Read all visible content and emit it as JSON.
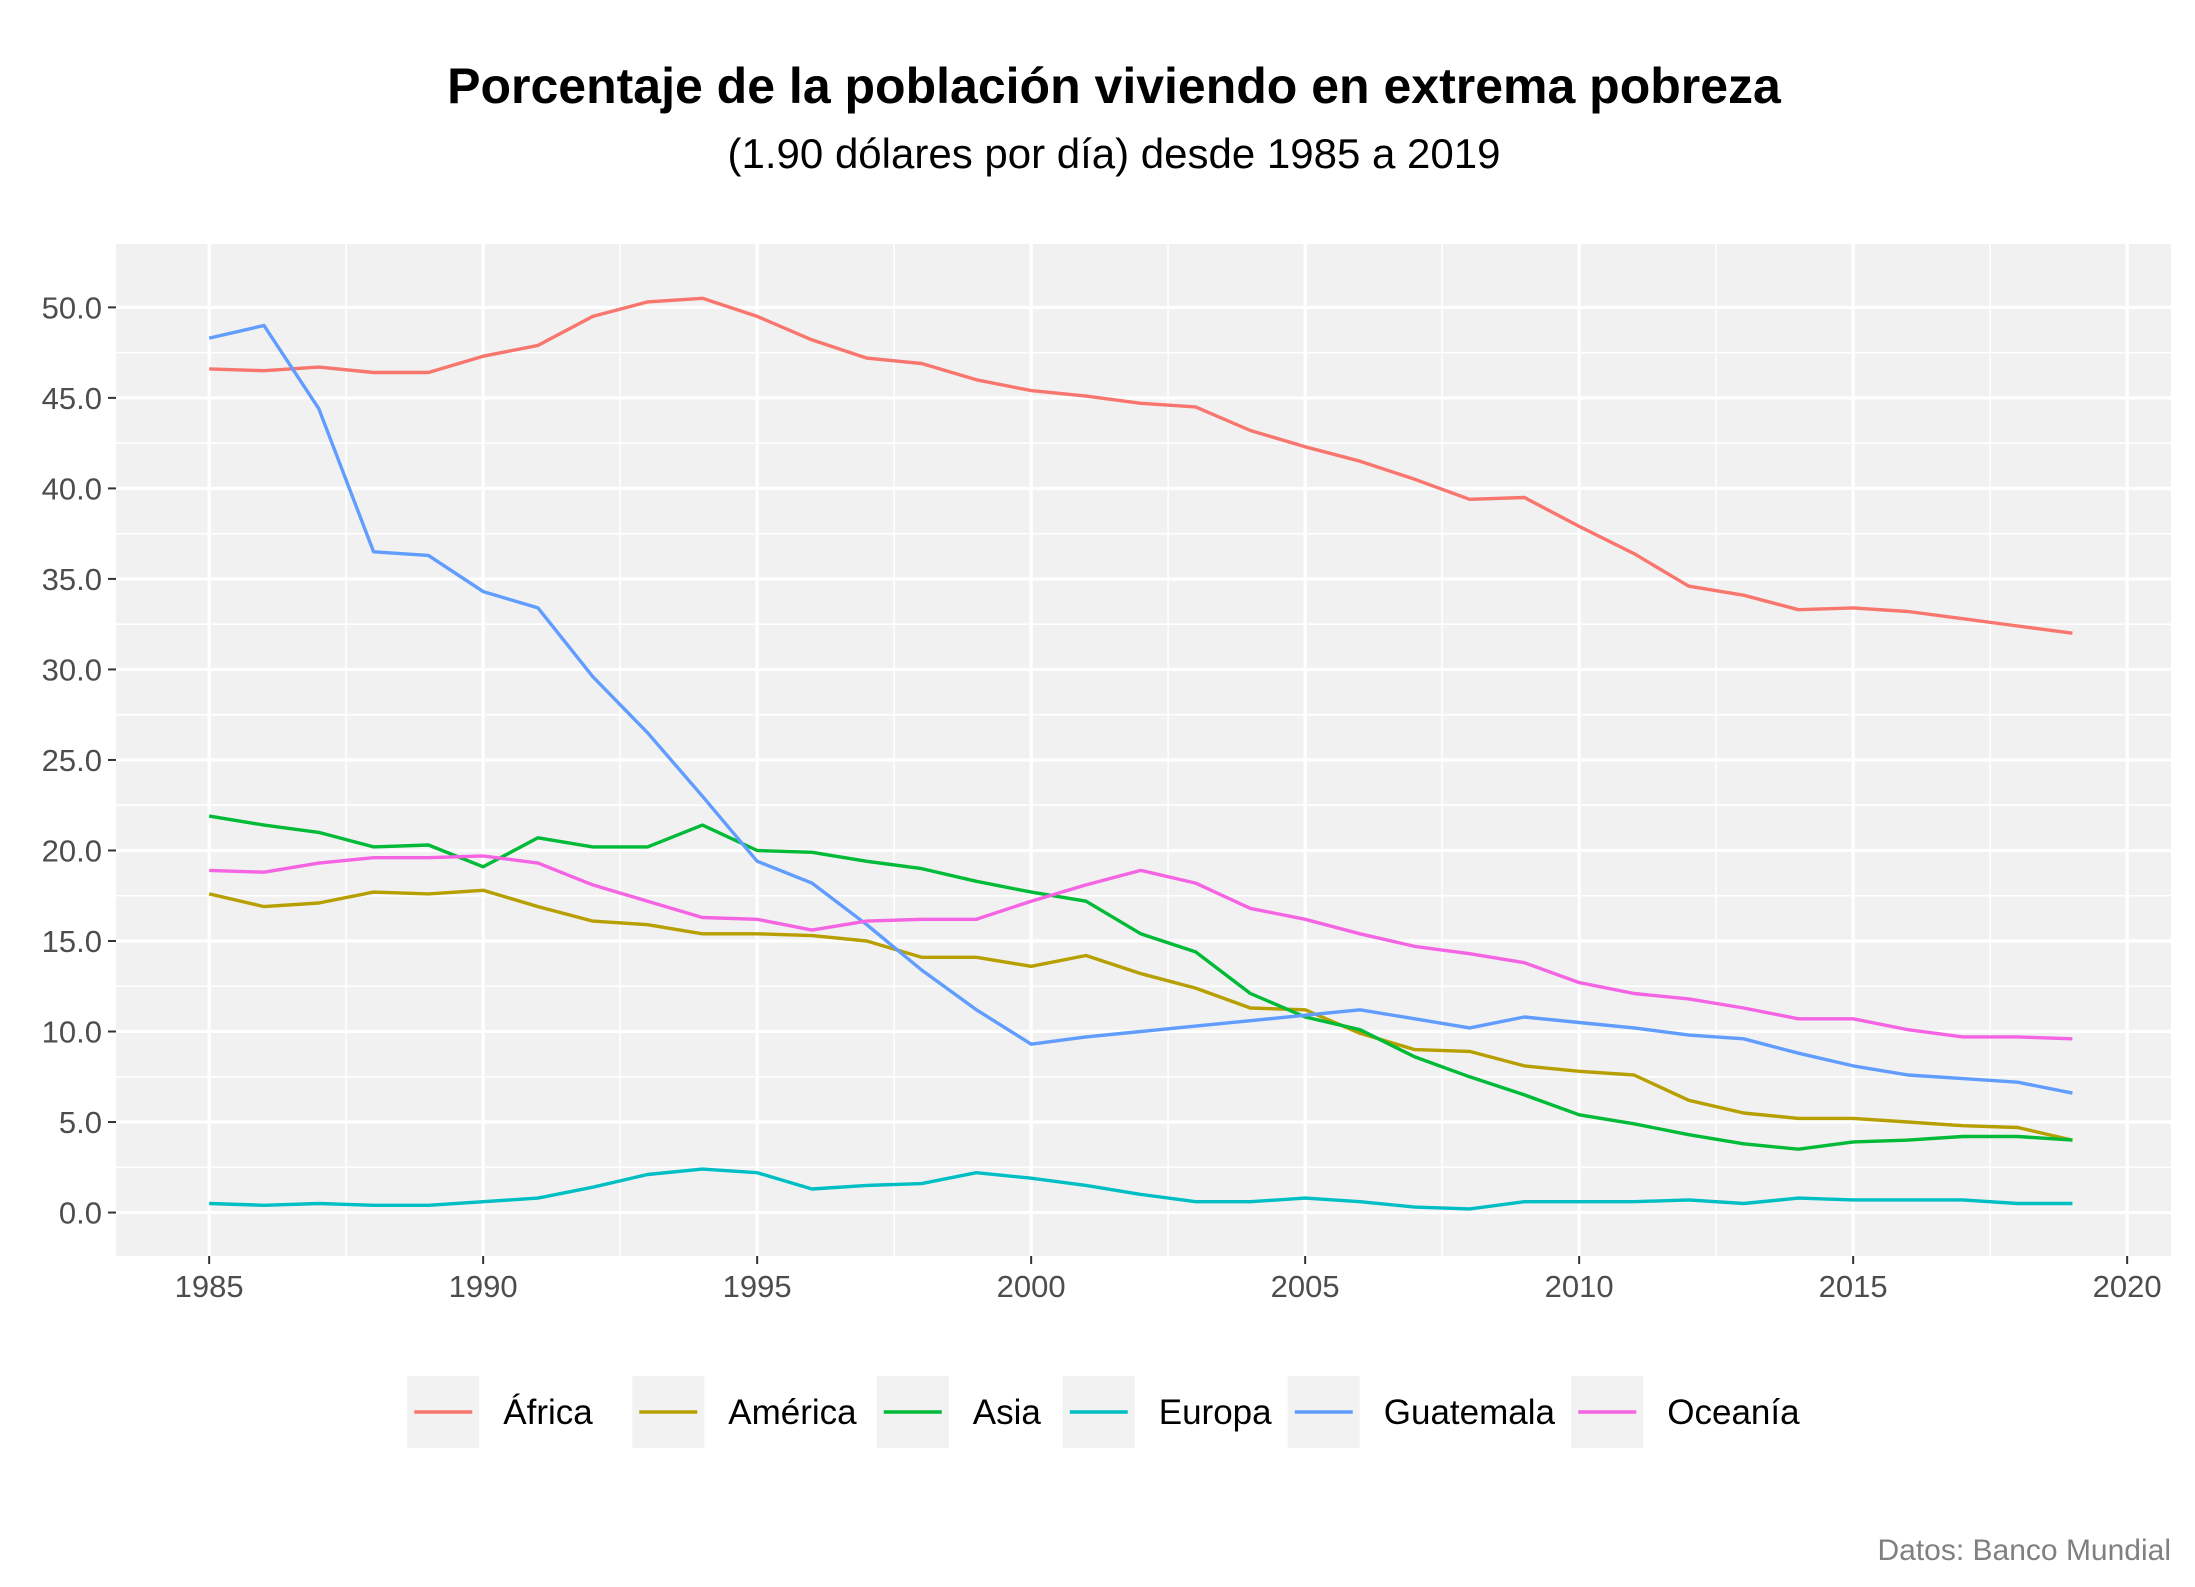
{
  "chart_data": {
    "type": "line",
    "title": "Porcentaje de la población viviendo en extrema pobreza",
    "subtitle": "(1.90 dólares por día) desde 1985 a 2019",
    "caption": "Datos: Banco Mundial",
    "xlabel": "",
    "ylabel": "",
    "xlim": [
      1983.3,
      2020.8
    ],
    "ylim": [
      -2.4,
      53.5
    ],
    "x_ticks": [
      1985,
      1990,
      1995,
      2000,
      2005,
      2010,
      2015,
      2020
    ],
    "x_tick_labels": [
      "1985",
      "1990",
      "1995",
      "2000",
      "2005",
      "2010",
      "2015",
      "2020"
    ],
    "y_ticks": [
      0,
      5,
      10,
      15,
      20,
      25,
      30,
      35,
      40,
      45,
      50
    ],
    "y_tick_labels": [
      "0.0",
      "5.0",
      "10.0",
      "15.0",
      "20.0",
      "25.0",
      "30.0",
      "35.0",
      "40.0",
      "45.0",
      "50.0"
    ],
    "grid": true,
    "legend_position": "bottom",
    "x": [
      1985,
      1986,
      1987,
      1988,
      1989,
      1990,
      1991,
      1992,
      1993,
      1994,
      1995,
      1996,
      1997,
      1998,
      1999,
      2000,
      2001,
      2002,
      2003,
      2004,
      2005,
      2006,
      2007,
      2008,
      2009,
      2010,
      2011,
      2012,
      2013,
      2014,
      2015,
      2016,
      2017,
      2018,
      2019
    ],
    "series": [
      {
        "name": "África",
        "color": "#F8766D",
        "values": [
          46.6,
          46.5,
          46.7,
          46.4,
          46.4,
          47.3,
          47.9,
          49.5,
          50.3,
          50.5,
          49.5,
          48.2,
          47.2,
          46.9,
          46.0,
          45.4,
          45.1,
          44.7,
          44.5,
          43.2,
          42.3,
          41.5,
          40.5,
          39.4,
          39.5,
          37.9,
          36.4,
          34.6,
          34.1,
          33.3,
          33.4,
          33.2,
          32.8,
          32.4,
          32.0
        ]
      },
      {
        "name": "América",
        "color": "#B79F00",
        "values": [
          17.6,
          16.9,
          17.1,
          17.7,
          17.6,
          17.8,
          16.9,
          16.1,
          15.9,
          15.4,
          15.4,
          15.3,
          15.0,
          14.1,
          14.1,
          13.6,
          14.2,
          13.2,
          12.4,
          11.3,
          11.2,
          9.9,
          9.0,
          8.9,
          8.1,
          7.8,
          7.6,
          6.2,
          5.5,
          5.2,
          5.2,
          5.0,
          4.8,
          4.7,
          4.0
        ]
      },
      {
        "name": "Asia",
        "color": "#00BA38",
        "values": [
          21.9,
          21.4,
          21.0,
          20.2,
          20.3,
          19.1,
          20.7,
          20.2,
          20.2,
          21.4,
          20.0,
          19.9,
          19.4,
          19.0,
          18.3,
          17.7,
          17.2,
          15.4,
          14.4,
          12.1,
          10.8,
          10.1,
          8.6,
          7.5,
          6.5,
          5.4,
          4.9,
          4.3,
          3.8,
          3.5,
          3.9,
          4.0,
          4.2,
          4.2,
          4.0
        ]
      },
      {
        "name": "Europa",
        "color": "#00BFC4",
        "values": [
          0.5,
          0.4,
          0.5,
          0.4,
          0.4,
          0.6,
          0.8,
          1.4,
          2.1,
          2.4,
          2.2,
          1.3,
          1.5,
          1.6,
          2.2,
          1.9,
          1.5,
          1.0,
          0.6,
          0.6,
          0.8,
          0.6,
          0.3,
          0.2,
          0.6,
          0.6,
          0.6,
          0.7,
          0.5,
          0.8,
          0.7,
          0.7,
          0.7,
          0.5,
          0.5
        ]
      },
      {
        "name": "Guatemala",
        "color": "#619CFF",
        "values": [
          48.3,
          49.0,
          44.4,
          36.5,
          36.3,
          34.3,
          33.4,
          29.6,
          26.5,
          23.0,
          19.4,
          18.2,
          15.9,
          13.4,
          11.2,
          9.3,
          9.7,
          10.0,
          10.3,
          10.6,
          10.9,
          11.2,
          10.7,
          10.2,
          10.8,
          10.5,
          10.2,
          9.8,
          9.6,
          8.8,
          8.1,
          7.6,
          7.4,
          7.2,
          6.6
        ]
      },
      {
        "name": "Oceanía",
        "color": "#F564E3",
        "values": [
          18.9,
          18.8,
          19.3,
          19.6,
          19.6,
          19.7,
          19.3,
          18.1,
          17.2,
          16.3,
          16.2,
          15.6,
          16.1,
          16.2,
          16.2,
          17.2,
          18.1,
          18.9,
          18.2,
          16.8,
          16.2,
          15.4,
          14.7,
          14.3,
          13.8,
          12.7,
          12.1,
          11.8,
          11.3,
          10.7,
          10.7,
          10.1,
          9.7,
          9.7,
          9.6
        ]
      }
    ]
  }
}
